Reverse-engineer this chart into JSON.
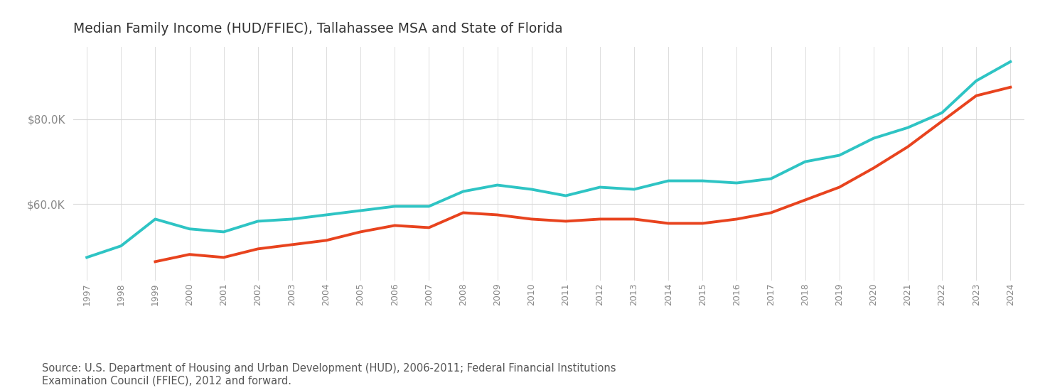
{
  "title": "Median Family Income (HUD/FFIEC), Tallahassee MSA and State of Florida",
  "source_text": "Source: U.S. Department of Housing and Urban Development (HUD), 2006-2011; Federal Financial Institutions\nExamination Council (FFIEC), 2012 and forward.",
  "years": [
    1997,
    1998,
    1999,
    2000,
    2001,
    2002,
    2003,
    2004,
    2005,
    2006,
    2007,
    2008,
    2009,
    2010,
    2011,
    2012,
    2013,
    2014,
    2015,
    2016,
    2017,
    2018,
    2019,
    2020,
    2021,
    2022,
    2023,
    2024
  ],
  "tallahassee": [
    47500,
    50200,
    56500,
    54200,
    53500,
    56000,
    56500,
    57500,
    58500,
    59500,
    59500,
    63000,
    64500,
    63500,
    62000,
    64000,
    63500,
    65500,
    65500,
    65000,
    66000,
    70000,
    71500,
    75500,
    78000,
    81500,
    89000,
    93500
  ],
  "florida": [
    null,
    null,
    46500,
    48200,
    47500,
    49500,
    50500,
    51500,
    53500,
    55000,
    54500,
    58000,
    57500,
    56500,
    56000,
    56500,
    56500,
    55500,
    55500,
    56500,
    58000,
    61000,
    64000,
    68500,
    73500,
    79500,
    85500,
    87500
  ],
  "talla_color": "#2ec4c4",
  "florida_color": "#e8431e",
  "background_color": "#ffffff",
  "grid_color": "#d8d8d8",
  "ylim_min": 42000,
  "ylim_max": 97000,
  "yticks": [
    60000,
    80000
  ],
  "title_fontsize": 13.5,
  "source_fontsize": 10.5,
  "line_width": 2.8,
  "tick_label_color": "#888888"
}
